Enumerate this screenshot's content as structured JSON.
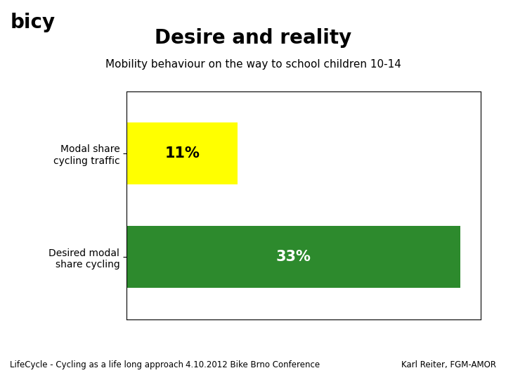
{
  "chart_data": {
    "type": "bar",
    "orientation": "horizontal",
    "title": "Desire and reality",
    "subtitle": "Mobility behaviour on the way to school children 10-14",
    "categories": [
      "Modal share\ncycling traffic",
      "Desired modal\nshare cycling"
    ],
    "values": [
      11,
      33
    ],
    "value_labels": [
      "11%",
      "33%"
    ],
    "data_labels": true,
    "colors": [
      "#FFFF00",
      "#2D8A2D"
    ],
    "xlim": [
      0,
      35
    ],
    "tick_labels": "y",
    "annotations": [
      "bicy",
      "LifeCycle - Cycling as a life long approach",
      "4.10.2012 Bike Brno Conference",
      "Karl Reiter, FGM-AMOR"
    ]
  }
}
